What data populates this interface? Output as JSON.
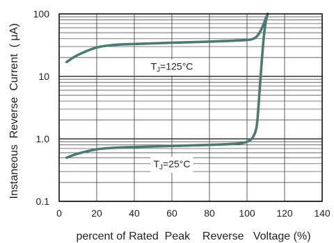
{
  "chart_data": {
    "type": "line",
    "title": "",
    "xlabel": "percent of Rated  Peak    Reverse   Voltage (%)",
    "ylabel": "Instaneous  Reverse  Current  ( μA)",
    "xlim": [
      0,
      140
    ],
    "ylim": [
      0.1,
      100
    ],
    "yscale": "log",
    "grid": true,
    "x_ticks": [
      0,
      20,
      40,
      60,
      80,
      100,
      120,
      140
    ],
    "x_tick_labels": [
      "0",
      "20",
      "40",
      "60",
      "80",
      "100",
      "120",
      "140"
    ],
    "y_ticks": [
      0.1,
      1,
      10,
      100
    ],
    "y_tick_labels": [
      "0.1",
      "1.0",
      "10",
      "100"
    ],
    "series": [
      {
        "label": "TJ=125°C",
        "label_parts": [
          "T",
          "J",
          "=125°C"
        ],
        "color": "#4a7a72",
        "x": [
          4,
          10,
          20,
          30,
          40,
          60,
          80,
          95,
          102,
          105,
          107,
          108.5,
          110,
          111
        ],
        "y": [
          17,
          22,
          29,
          32,
          33,
          34.5,
          36,
          37.5,
          39,
          43,
          52,
          65,
          85,
          100
        ]
      },
      {
        "label": "TJ=25°C",
        "label_parts": [
          "T",
          "J",
          "=25°C"
        ],
        "color": "#4a7a72",
        "x": [
          4,
          10,
          20,
          30,
          40,
          60,
          80,
          95,
          100,
          103,
          105,
          106,
          107,
          108,
          109,
          110,
          111
        ],
        "y": [
          0.5,
          0.58,
          0.68,
          0.72,
          0.74,
          0.77,
          0.8,
          0.84,
          0.9,
          1.05,
          1.5,
          3,
          8,
          20,
          45,
          75,
          100
        ]
      }
    ]
  }
}
